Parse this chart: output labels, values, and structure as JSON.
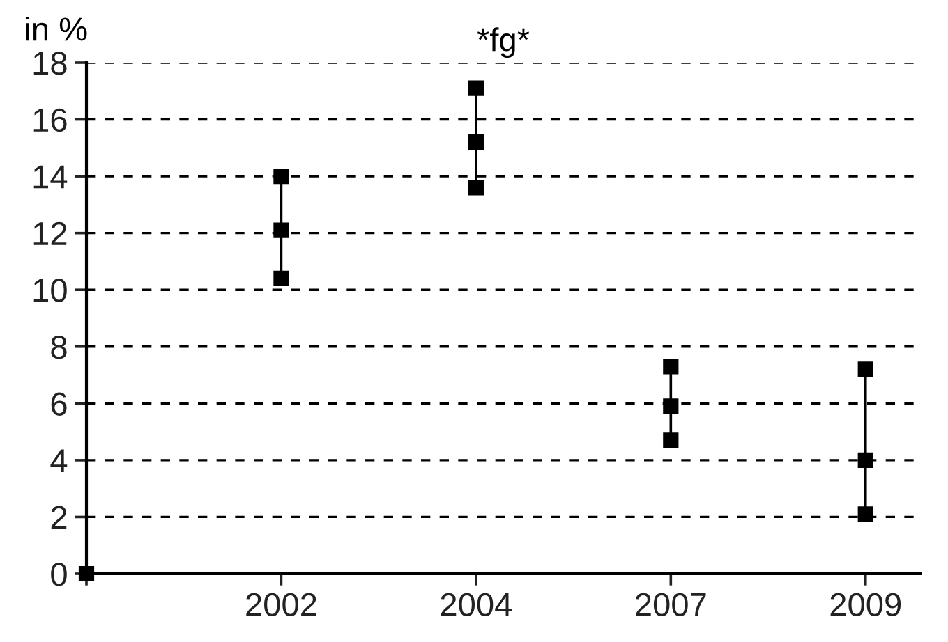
{
  "chart_data": {
    "type": "scatter",
    "title": "*fg*",
    "ylabel": "in %",
    "categories": [
      null,
      "2002",
      "2004",
      "2007",
      "2009"
    ],
    "series": [
      {
        "color": "#000000",
        "values": [
          0,
          12.1,
          15.2,
          5.9,
          4.0
        ]
      },
      {
        "color": "#000000",
        "values": [
          null,
          10.4,
          13.6,
          4.7,
          2.1
        ]
      },
      {
        "color": "#000000",
        "values": [
          null,
          14.0,
          17.1,
          7.3,
          7.2
        ]
      }
    ],
    "ylim": [
      0,
      18
    ],
    "yticks": [
      0,
      2,
      4,
      6,
      8,
      10,
      12,
      14,
      16,
      18
    ],
    "grid": "y",
    "marker": "square"
  }
}
